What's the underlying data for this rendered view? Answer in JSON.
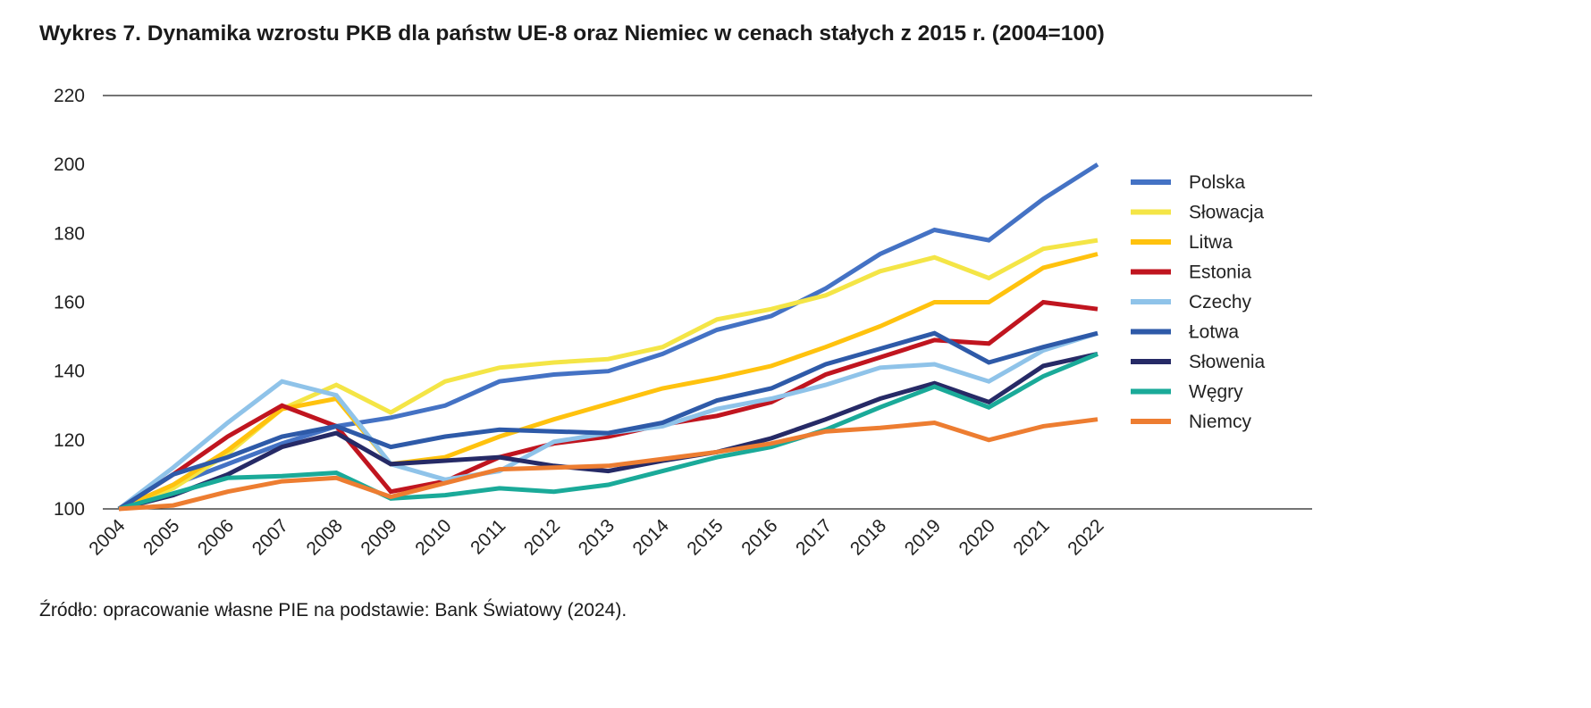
{
  "chart_data": {
    "type": "line",
    "title": "Wykres 7.  Dynamika wzrostu PKB dla państw UE-8 oraz Niemiec w cenach stałych z 2015 r. (2004=100)",
    "source": "Źródło: opracowanie własne PIE na podstawie: Bank Światowy (2024).",
    "xlabel": "",
    "ylabel": "",
    "ylim": [
      100,
      220
    ],
    "yticks": [
      100,
      120,
      140,
      160,
      180,
      200,
      220
    ],
    "grid": "horizontal at 100 and 220",
    "legend": "right",
    "x": [
      "2004",
      "2005",
      "2006",
      "2007",
      "2008",
      "2009",
      "2010",
      "2011",
      "2012",
      "2013",
      "2014",
      "2015",
      "2016",
      "2017",
      "2018",
      "2019",
      "2020",
      "2021",
      "2022"
    ],
    "series": [
      {
        "name": "Polska",
        "color": "#4472c4",
        "values": [
          100,
          107,
          113,
          119,
          124,
          126.5,
          130,
          137,
          139,
          140,
          145,
          152,
          156,
          164,
          174,
          181,
          178,
          190,
          200
        ]
      },
      {
        "name": "Słowacja",
        "color": "#f4e546",
        "values": [
          100,
          106,
          116,
          129,
          136,
          128,
          137,
          141,
          142.5,
          143.5,
          147,
          155,
          158,
          162,
          169,
          173,
          167,
          175.5,
          178
        ]
      },
      {
        "name": "Litwa",
        "color": "#ffc20e",
        "values": [
          100,
          107,
          117,
          129,
          132,
          113,
          115,
          121,
          126,
          130.5,
          135,
          138,
          141.5,
          147,
          153,
          160,
          160,
          170,
          174
        ]
      },
      {
        "name": "Estonia",
        "color": "#c0151f",
        "values": [
          100,
          110,
          121,
          130,
          124,
          105,
          108,
          115,
          119,
          121,
          124.5,
          127,
          131,
          139,
          144,
          149,
          148,
          160,
          158
        ]
      },
      {
        "name": "Czechy",
        "color": "#8fc3e9",
        "values": [
          100,
          112,
          125,
          137,
          133,
          113,
          108.5,
          111,
          119.5,
          122,
          124,
          129,
          132,
          136,
          141,
          142,
          137,
          146,
          151
        ]
      },
      {
        "name": "Łotwa",
        "color": "#2e5aa8",
        "values": [
          100,
          110,
          115,
          121,
          124,
          118,
          121,
          123,
          122.5,
          122,
          125,
          131.5,
          135,
          142,
          146.5,
          151,
          142.5,
          147,
          151
        ]
      },
      {
        "name": "Słowenia",
        "color": "#262a66",
        "values": [
          100,
          104,
          110,
          118,
          122,
          113,
          114,
          115,
          112.5,
          111,
          114,
          116.5,
          120.5,
          126,
          132,
          136.5,
          131,
          141.5,
          145
        ]
      },
      {
        "name": "Węgry",
        "color": "#1aaa99",
        "values": [
          100,
          104.5,
          109,
          109.5,
          110.5,
          103,
          104,
          106,
          105,
          107,
          111,
          115,
          118,
          123,
          129.5,
          135.5,
          129.5,
          138.5,
          145
        ]
      },
      {
        "name": "Niemcy",
        "color": "#ed7d31",
        "values": [
          100,
          101,
          105,
          108,
          109,
          103.5,
          107.5,
          111.5,
          112,
          112.5,
          114.5,
          116.5,
          119,
          122.5,
          123.5,
          125,
          120,
          124,
          126
        ]
      }
    ]
  }
}
